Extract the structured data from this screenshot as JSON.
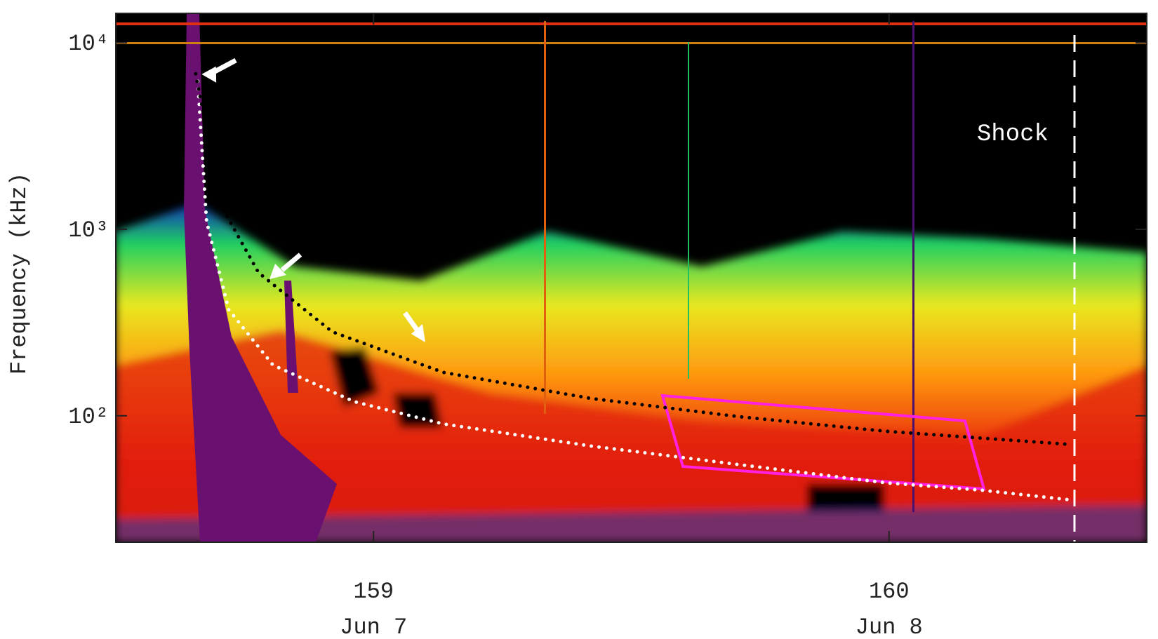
{
  "chart_data": {
    "type": "line",
    "y_label": "Frequency (kHz)",
    "annotations": [
      "Shock"
    ],
    "xlim": [
      158.5,
      160.5
    ],
    "xticks": [
      159,
      160
    ],
    "x_date_labels": [
      "Jun 7",
      "Jun 8"
    ],
    "ylim": [
      21,
      14400
    ],
    "log_y": true,
    "yticks": [
      {
        "value": 100,
        "label": "10²"
      },
      {
        "value": 1000,
        "label": "10³"
      },
      {
        "value": 10000,
        "label": "10⁴"
      }
    ],
    "series": [
      {
        "color": "#ffffff",
        "x": [
          158.659,
          158.676,
          158.719,
          158.805,
          158.963,
          159.135,
          159.421,
          159.708,
          159.994,
          160.18,
          160.352
        ],
        "values": [
          6220,
          1104,
          371,
          187,
          119,
          90.5,
          68.9,
          54.8,
          43.7,
          39.9,
          35.4
        ]
      },
      {
        "color": "#000000",
        "x": [
          158.655,
          158.705,
          158.777,
          158.92,
          159.135,
          159.421,
          159.708,
          159.994,
          160.352
        ],
        "values": [
          6820,
          1327,
          585,
          282,
          171,
          124,
          99,
          82.6,
          70.2
        ]
      }
    ]
  }
}
